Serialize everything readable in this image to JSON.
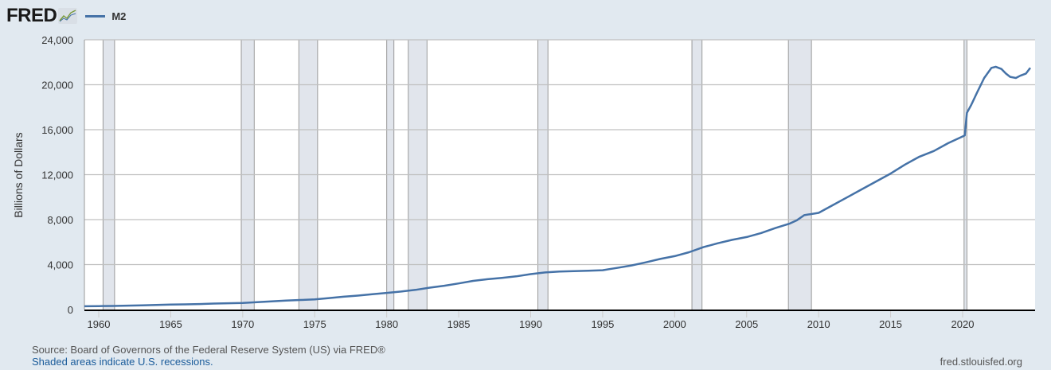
{
  "header": {
    "logo_text": "FRED",
    "logo_icon": "chart-line-icon",
    "legend": [
      {
        "label": "M2",
        "color": "#4572a7"
      }
    ]
  },
  "footer": {
    "source": "Source: Board of Governors of the Federal Reserve System (US) via FRED®",
    "note": "Shaded areas indicate U.S. recessions.",
    "url": "fred.stlouisfed.org"
  },
  "colors": {
    "background": "#e1e9f0",
    "plot_bg": "#ffffff",
    "series": "#4572a7",
    "recession": "#e1e5ec",
    "grid": "#c0c0c0"
  },
  "chart_data": {
    "type": "line",
    "title": "",
    "xlabel": "",
    "ylabel": "Billions of Dollars",
    "xlim": [
      1959,
      2024.7
    ],
    "ylim": [
      0,
      24000
    ],
    "x_ticks": [
      "1960",
      "1965",
      "1970",
      "1975",
      "1980",
      "1985",
      "1990",
      "1995",
      "2000",
      "2005",
      "2010",
      "2015",
      "2020"
    ],
    "y_ticks": [
      "0",
      "4,000",
      "8,000",
      "12,000",
      "16,000",
      "20,000",
      "24,000"
    ],
    "y_tick_values": [
      0,
      4000,
      8000,
      12000,
      16000,
      20000,
      24000
    ],
    "grid": true,
    "legend_position": "top-left",
    "recessions": [
      [
        1960.3,
        1961.1
      ],
      [
        1969.9,
        1970.8
      ],
      [
        1973.9,
        1975.2
      ],
      [
        1980.0,
        1980.5
      ],
      [
        1981.5,
        1982.8
      ],
      [
        1990.5,
        1991.2
      ],
      [
        2001.2,
        2001.9
      ],
      [
        2007.9,
        2009.5
      ],
      [
        2020.1,
        2020.3
      ]
    ],
    "series": [
      {
        "name": "M2",
        "x": [
          1959,
          1960,
          1961,
          1962,
          1963,
          1964,
          1965,
          1966,
          1967,
          1968,
          1969,
          1970,
          1971,
          1972,
          1973,
          1974,
          1975,
          1976,
          1977,
          1978,
          1979,
          1980,
          1981,
          1982,
          1983,
          1984,
          1985,
          1986,
          1987,
          1988,
          1989,
          1990,
          1991,
          1992,
          1993,
          1994,
          1995,
          1996,
          1997,
          1998,
          1999,
          2000,
          2001,
          2002,
          2003,
          2004,
          2005,
          2006,
          2007,
          2008,
          2008.5,
          2009,
          2010,
          2011,
          2012,
          2013,
          2014,
          2015,
          2016,
          2017,
          2018,
          2019,
          2020.0,
          2020.15,
          2020.3,
          2020.6,
          2021.0,
          2021.5,
          2022.0,
          2022.3,
          2022.7,
          2023.0,
          2023.3,
          2023.7,
          2024.0,
          2024.4,
          2024.7
        ],
        "values": [
          290,
          305,
          320,
          345,
          375,
          405,
          440,
          460,
          490,
          530,
          560,
          590,
          650,
          720,
          800,
          850,
          900,
          1020,
          1140,
          1240,
          1360,
          1480,
          1600,
          1750,
          1950,
          2120,
          2320,
          2550,
          2700,
          2820,
          2950,
          3150,
          3300,
          3380,
          3420,
          3450,
          3500,
          3700,
          3920,
          4200,
          4500,
          4750,
          5100,
          5550,
          5900,
          6200,
          6450,
          6800,
          7250,
          7650,
          7950,
          8400,
          8600,
          9300,
          10000,
          10700,
          11400,
          12100,
          12900,
          13600,
          14100,
          14800,
          15400,
          15500,
          17500,
          18200,
          19300,
          20600,
          21500,
          21600,
          21400,
          21000,
          20700,
          20600,
          20800,
          21000,
          21500
        ]
      }
    ]
  }
}
